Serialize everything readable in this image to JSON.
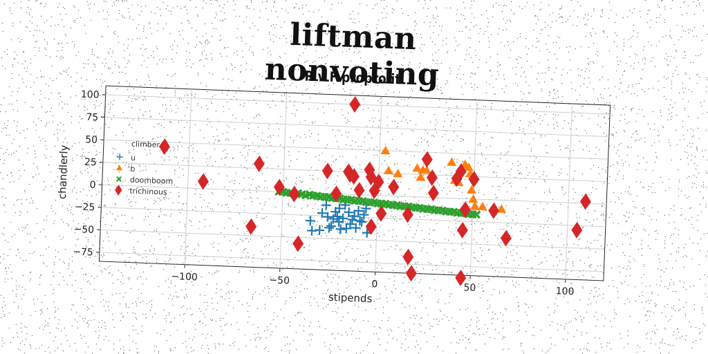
{
  "suptitle": "liftman nonvoting",
  "chart_data": {
    "type": "scatter",
    "title": "R v F proprofit",
    "xlabel": "stipends",
    "ylabel": "chandlerly",
    "xlim": [
      -145,
      120
    ],
    "ylim": [
      -85,
      110
    ],
    "xticks": [
      -100,
      -50,
      0,
      50,
      100
    ],
    "yticks": [
      -75,
      -50,
      -25,
      0,
      25,
      50,
      75,
      100
    ],
    "grid": true,
    "legend": {
      "title": "climber",
      "placement": "center-left"
    },
    "series": [
      {
        "name": "u",
        "marker": "plus",
        "color": "#1f77b4",
        "points": [
          [
            -35,
            -31
          ],
          [
            -34,
            -42
          ],
          [
            -30,
            -41
          ],
          [
            -29,
            -22
          ],
          [
            -27,
            -13
          ],
          [
            -26,
            -26
          ],
          [
            -25,
            -38
          ],
          [
            -24,
            -36
          ],
          [
            -23,
            -28
          ],
          [
            -22,
            -20
          ],
          [
            -21,
            -25
          ],
          [
            -20,
            -31
          ],
          [
            -20,
            -16
          ],
          [
            -19,
            -39
          ],
          [
            -18,
            -27
          ],
          [
            -17,
            -12
          ],
          [
            -16,
            -38
          ],
          [
            -15,
            -20
          ],
          [
            -14,
            -33
          ],
          [
            -13,
            -28
          ],
          [
            -12,
            -24
          ],
          [
            -11,
            -37
          ],
          [
            -10,
            -18
          ],
          [
            -9,
            -29
          ],
          [
            -8,
            -30
          ],
          [
            -7,
            -22
          ],
          [
            -6,
            -15
          ],
          [
            -5,
            -42
          ]
        ]
      },
      {
        "name": "b",
        "marker": "triangle",
        "color": "#ff7f0e",
        "points": [
          [
            3,
            50
          ],
          [
            5,
            28
          ],
          [
            10,
            25
          ],
          [
            20,
            32
          ],
          [
            22,
            22
          ],
          [
            23,
            30
          ],
          [
            25,
            30
          ],
          [
            38,
            40
          ],
          [
            40,
            20
          ],
          [
            42,
            18
          ],
          [
            45,
            38
          ],
          [
            47,
            35
          ],
          [
            48,
            28
          ],
          [
            49,
            10
          ],
          [
            50,
            0
          ],
          [
            51,
            -8
          ],
          [
            55,
            -8
          ],
          [
            65,
            -10
          ]
        ]
      },
      {
        "name": "doomboom",
        "marker": "x",
        "color": "#2ca02c",
        "points": [
          [
            -52,
            0
          ],
          [
            -50,
            0
          ],
          [
            -48,
            -1
          ],
          [
            -46,
            -1
          ],
          [
            -44,
            -2
          ],
          [
            -42,
            -1
          ],
          [
            -40,
            -2
          ],
          [
            -38,
            -3
          ],
          [
            -36,
            -2
          ],
          [
            -34,
            -3
          ],
          [
            -32,
            -3
          ],
          [
            -30,
            -4
          ],
          [
            -28,
            -4
          ],
          [
            -26,
            -4
          ],
          [
            -24,
            -5
          ],
          [
            -22,
            -5
          ],
          [
            -20,
            -5
          ],
          [
            -18,
            -6
          ],
          [
            -16,
            -6
          ],
          [
            -14,
            -6
          ],
          [
            -12,
            -7
          ],
          [
            -10,
            -7
          ],
          [
            -8,
            -7
          ],
          [
            -6,
            -8
          ],
          [
            -4,
            -8
          ],
          [
            -2,
            -8
          ],
          [
            0,
            -9
          ],
          [
            2,
            -9
          ],
          [
            4,
            -9
          ],
          [
            6,
            -10
          ],
          [
            8,
            -10
          ],
          [
            10,
            -10
          ],
          [
            12,
            -11
          ],
          [
            14,
            -11
          ],
          [
            16,
            -11
          ],
          [
            18,
            -12
          ],
          [
            20,
            -12
          ],
          [
            22,
            -12
          ],
          [
            24,
            -13
          ],
          [
            26,
            -13
          ],
          [
            28,
            -13
          ],
          [
            30,
            -14
          ],
          [
            32,
            -14
          ],
          [
            34,
            -14
          ],
          [
            36,
            -15
          ],
          [
            38,
            -15
          ],
          [
            40,
            -15
          ],
          [
            42,
            -16
          ],
          [
            44,
            -16
          ],
          [
            46,
            -16
          ],
          [
            48,
            -17
          ],
          [
            50,
            -17
          ],
          [
            52,
            -17
          ]
        ]
      },
      {
        "name": "trichinous",
        "marker": "diamond",
        "color": "#d62728",
        "points": [
          [
            -113,
            45
          ],
          [
            -92,
            8
          ],
          [
            -66,
            -40
          ],
          [
            -63,
            30
          ],
          [
            -52,
            5
          ],
          [
            -44,
            -2
          ],
          [
            -41,
            -57
          ],
          [
            -27,
            25
          ],
          [
            -22,
            0
          ],
          [
            -16,
            25
          ],
          [
            -15,
            22
          ],
          [
            -14,
            100
          ],
          [
            -13,
            20
          ],
          [
            -10,
            5
          ],
          [
            -5,
            28
          ],
          [
            -4,
            20
          ],
          [
            -3,
            -35
          ],
          [
            -2,
            5
          ],
          [
            0,
            15
          ],
          [
            2,
            -20
          ],
          [
            8,
            10
          ],
          [
            16,
            -20
          ],
          [
            17,
            -67
          ],
          [
            19,
            -85
          ],
          [
            25,
            42
          ],
          [
            28,
            22
          ],
          [
            29,
            5
          ],
          [
            41,
            22
          ],
          [
            43,
            30
          ],
          [
            45,
            -35
          ],
          [
            45,
            -88
          ],
          [
            46,
            -12
          ],
          [
            50,
            22
          ],
          [
            61,
            -12
          ],
          [
            68,
            -42
          ],
          [
            105,
            -30
          ],
          [
            109,
            2
          ]
        ]
      }
    ]
  }
}
